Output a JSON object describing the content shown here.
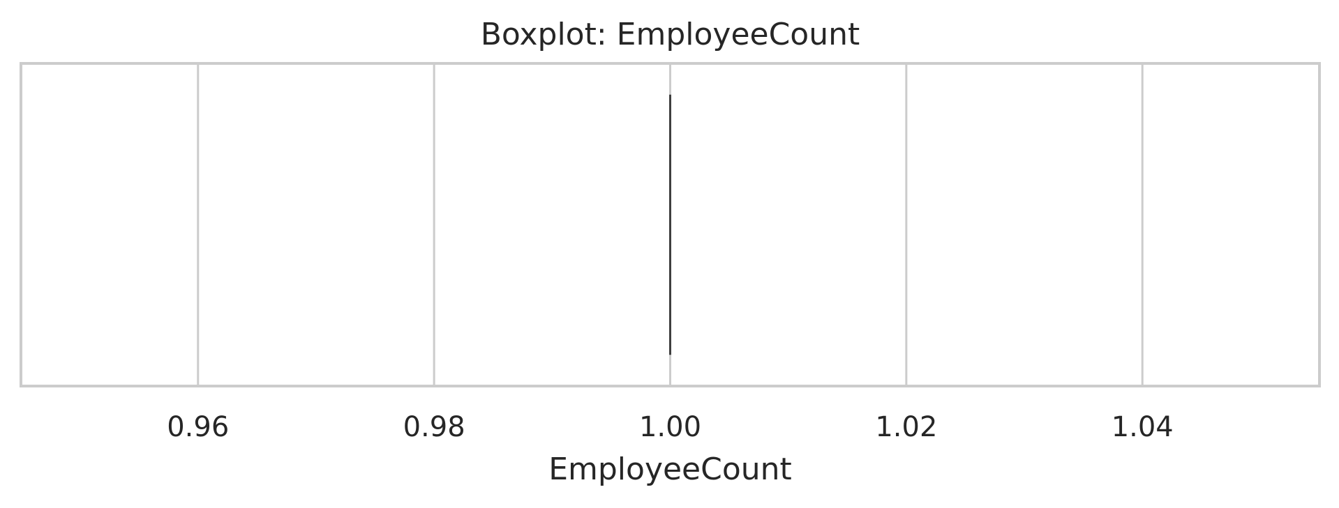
{
  "chart_data": {
    "type": "box",
    "title": "Boxplot: EmployeeCount",
    "xlabel": "EmployeeCount",
    "ylabel": "",
    "orientation": "horizontal",
    "xlim": [
      0.945,
      1.055
    ],
    "xticks": [
      0.96,
      0.98,
      1.0,
      1.02,
      1.04
    ],
    "xtick_labels": [
      "0.96",
      "0.98",
      "1.00",
      "1.02",
      "1.04"
    ],
    "grid": true,
    "series": [
      {
        "min": 1.0,
        "q1": 1.0,
        "median": 1.0,
        "q3": 1.0,
        "max": 1.0
      }
    ],
    "colors": {
      "grid": "#cccccc",
      "frame": "#cccccc",
      "box_line": "#3f3f3f",
      "text": "#262626",
      "background": "#ffffff"
    }
  }
}
